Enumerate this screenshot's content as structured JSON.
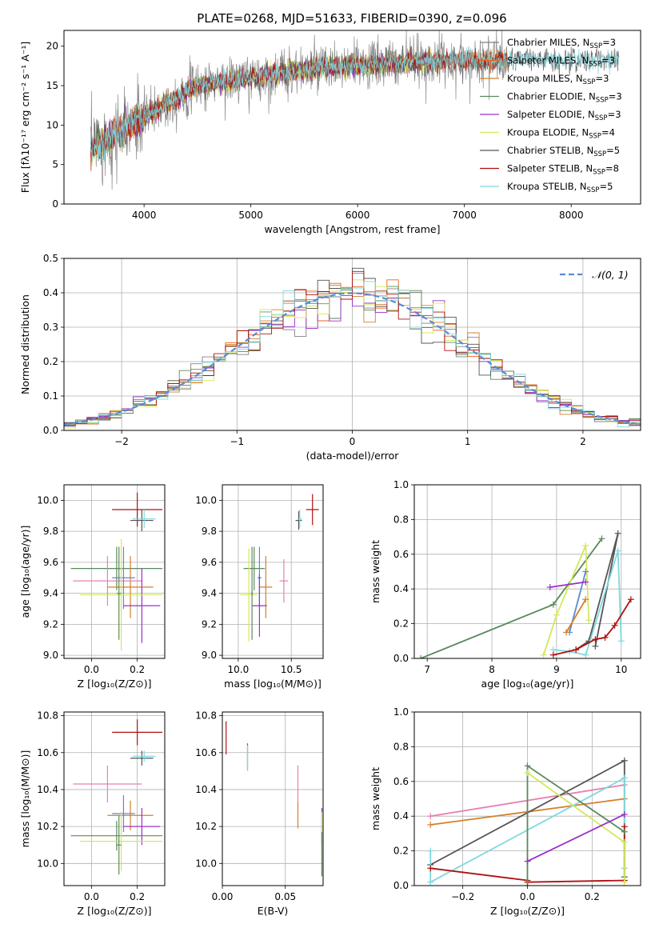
{
  "figure": {
    "suptitle": "PLATE=0268, MJD=51633, FIBERID=0390, z=0.096"
  },
  "colors": {
    "Chabrier MILES": "#808080",
    "Salpeter MILES": "#e8641a",
    "Kroupa MILES": "#d47f2a",
    "Chabrier ELODIE": "#5b8a5b",
    "Salpeter ELODIE": "#9b30c8",
    "Kroupa ELODIE": "#d4e85a",
    "Chabrier STELIB": "#555555",
    "Salpeter STELIB": "#b01010",
    "Kroupa STELIB": "#7fd8e0",
    "Pink": "#e880b0",
    "Blue": "#5a8ad8",
    "Normal": "#5a8ad8"
  },
  "chart_data": [
    {
      "id": "spectrum",
      "type": "line",
      "title": "",
      "xlabel": "wavelength [Angstrom, rest frame]",
      "ylabel": "Flux [fλ10⁻¹⁷ erg cm⁻² s⁻¹ A⁻¹]",
      "xlim": [
        3250,
        8650
      ],
      "ylim": [
        0,
        22
      ],
      "xticks": [
        4000,
        5000,
        6000,
        7000,
        8000
      ],
      "yticks": [
        0,
        5,
        10,
        15,
        20
      ],
      "grid": false,
      "legend_position": "right",
      "series": [
        {
          "name": "Chabrier MILES, N_SSP=3",
          "label_main": "Chabrier MILES, N",
          "label_sub": "SSP",
          "label_tail": "=3",
          "color_key": "Chabrier MILES",
          "x": [
            3500,
            4000,
            4500,
            5000,
            5500,
            6000,
            6500,
            7000,
            7400
          ],
          "y": [
            7,
            11,
            15,
            16,
            17,
            17.5,
            18,
            18.2,
            18.3
          ],
          "noise": 1.6
        },
        {
          "name": "Salpeter MILES, N_SSP=3",
          "label_main": "Salpeter MILES, N",
          "label_sub": "SSP",
          "label_tail": "=3",
          "color_key": "Salpeter MILES",
          "x": [
            3500,
            4000,
            4500,
            5000,
            5500,
            6000,
            6500,
            7000,
            7400
          ],
          "y": [
            7,
            11,
            15,
            16,
            17,
            17.5,
            18,
            18.2,
            18.3
          ],
          "noise": 0.6
        },
        {
          "name": "Kroupa MILES, N_SSP=3",
          "label_main": "Kroupa MILES, N",
          "label_sub": "SSP",
          "label_tail": "=3",
          "color_key": "Kroupa MILES",
          "x": [
            3500,
            4000,
            4500,
            5000,
            5500,
            6000,
            6500,
            7000,
            7400
          ],
          "y": [
            7,
            11,
            15,
            16,
            17,
            17.5,
            18,
            18.2,
            18.3
          ],
          "noise": 0.6
        },
        {
          "name": "Chabrier ELODIE, N_SSP=3",
          "label_main": "Chabrier ELODIE, N",
          "label_sub": "SSP",
          "label_tail": "=3",
          "color_key": "Chabrier ELODIE",
          "x": [
            3500,
            4000,
            4500,
            5000,
            5500,
            6000,
            6500,
            6800
          ],
          "y": [
            7,
            11,
            15,
            16,
            17,
            17.5,
            18,
            18.1
          ],
          "noise": 0.6
        },
        {
          "name": "Salpeter ELODIE, N_SSP=3",
          "label_main": "Salpeter ELODIE, N",
          "label_sub": "SSP",
          "label_tail": "=3",
          "color_key": "Salpeter ELODIE",
          "x": [
            3500,
            4000,
            4500,
            5000,
            5500,
            6000,
            6500,
            6800
          ],
          "y": [
            7,
            11,
            15,
            16,
            17,
            17.5,
            18,
            18.1
          ],
          "noise": 0.6
        },
        {
          "name": "Kroupa ELODIE, N_SSP=4",
          "label_main": "Kroupa ELODIE, N",
          "label_sub": "SSP",
          "label_tail": "=4",
          "color_key": "Kroupa ELODIE",
          "x": [
            3500,
            4000,
            4500,
            5000,
            5500,
            6000,
            6500,
            6800
          ],
          "y": [
            7,
            11,
            15,
            16,
            17,
            17.5,
            18,
            18.1
          ],
          "noise": 0.6
        },
        {
          "name": "Chabrier STELIB, N_SSP=5",
          "label_main": "Chabrier STELIB, N",
          "label_sub": "SSP",
          "label_tail": "=5",
          "color_key": "Chabrier STELIB",
          "x": [
            3500,
            4000,
            4500,
            5000,
            5500,
            6000,
            6500,
            7000,
            7500,
            8000,
            8450
          ],
          "y": [
            7,
            11,
            15,
            16,
            17,
            17.5,
            18,
            18.2,
            18.3,
            18.2,
            18.1
          ],
          "noise": 0.8
        },
        {
          "name": "Salpeter STELIB, N_SSP=8",
          "label_main": "Salpeter STELIB, N",
          "label_sub": "SSP",
          "label_tail": "=8",
          "color_key": "Salpeter STELIB",
          "x": [
            3500,
            4000,
            4500,
            5000,
            5500,
            6000,
            6500,
            7000,
            7400
          ],
          "y": [
            7,
            11,
            15,
            16,
            17,
            17.5,
            18,
            18.2,
            18.3
          ],
          "noise": 0.6
        },
        {
          "name": "Kroupa STELIB, N_SSP=5",
          "label_main": "Kroupa STELIB, N",
          "label_sub": "SSP",
          "label_tail": "=5",
          "color_key": "Kroupa STELIB",
          "x": [
            3500,
            4000,
            4500,
            5000,
            5500,
            6000,
            6500,
            7000,
            7500,
            8000,
            8450
          ],
          "y": [
            7,
            11,
            15,
            16,
            17,
            17.5,
            18,
            18.2,
            18.3,
            18.2,
            18.1
          ],
          "noise": 0.6
        }
      ]
    },
    {
      "id": "residuals",
      "type": "histogram",
      "title": "",
      "xlabel": "(data-model)/error",
      "ylabel": "Normed distribution",
      "xlim": [
        -2.5,
        2.5
      ],
      "ylim": [
        0,
        0.5
      ],
      "xticks": [
        -2,
        -1,
        0,
        1,
        2
      ],
      "yticks": [
        0.0,
        0.1,
        0.2,
        0.3,
        0.4,
        0.5
      ],
      "grid": true,
      "legend_position": "top-right",
      "legend": [
        {
          "name": "𝒩(0, 1)",
          "color_key": "Normal",
          "dashed": true
        }
      ],
      "bin_width": 0.1,
      "series_color_keys": [
        "Chabrier MILES",
        "Salpeter MILES",
        "Kroupa MILES",
        "Chabrier ELODIE",
        "Salpeter ELODIE",
        "Kroupa ELODIE",
        "Chabrier STELIB",
        "Salpeter STELIB",
        "Kroupa STELIB"
      ]
    },
    {
      "id": "age_vs_Z",
      "type": "errorbar",
      "xlabel": "Z [log₁₀(Z/Z⊙)]",
      "ylabel": "age  [log₁₀(age/yr)]",
      "xlim": [
        -0.12,
        0.32
      ],
      "ylim": [
        8.98,
        10.1
      ],
      "xticks": [
        0.0,
        0.2
      ],
      "xtick_labels": [
        "0.0",
        "0.2"
      ],
      "yticks": [
        9.0,
        9.2,
        9.4,
        9.6,
        9.8,
        10.0
      ],
      "grid": true,
      "points": [
        {
          "color_key": "Salpeter STELIB",
          "x": 0.2,
          "xerr": 0.11,
          "y": 9.94,
          "yerr": 0.11
        },
        {
          "color_key": "Chabrier STELIB",
          "x": 0.22,
          "xerr": 0.05,
          "y": 9.87,
          "yerr": 0.07
        },
        {
          "color_key": "Kroupa STELIB",
          "x": 0.23,
          "xerr": 0.05,
          "y": 9.88,
          "yerr": 0.06
        },
        {
          "color_key": "Chabrier ELODIE",
          "x": 0.11,
          "xerr": 0.2,
          "y": 9.56,
          "yerr": 0.14
        },
        {
          "color_key": "Kroupa MILES",
          "x": 0.17,
          "xerr": 0.1,
          "y": 9.44,
          "yerr": 0.2
        },
        {
          "color_key": "Pink",
          "x": 0.07,
          "xerr": 0.15,
          "y": 9.48,
          "yerr": 0.16
        },
        {
          "color_key": "Blue",
          "x": 0.14,
          "xerr": 0.05,
          "y": 9.5,
          "yerr": 0.2
        },
        {
          "color_key": "Salpeter ELODIE",
          "x": 0.22,
          "xerr": 0.08,
          "y": 9.32,
          "yerr": 0.24
        },
        {
          "color_key": "Kroupa ELODIE",
          "x": 0.13,
          "xerr": 0.18,
          "y": 9.39,
          "yerr": 0.36
        },
        {
          "color_key": "Chabrier ELODIE",
          "x": 0.12,
          "xerr": 0.01,
          "y": 9.4,
          "yerr": 0.3
        }
      ]
    },
    {
      "id": "age_vs_mass",
      "type": "errorbar",
      "xlabel": "mass [log₁₀(M/M⊙)]",
      "ylabel": "",
      "xlim": [
        9.85,
        10.8
      ],
      "ylim": [
        8.98,
        10.1
      ],
      "xticks": [
        10.0,
        10.5
      ],
      "xtick_labels": [
        "10.0",
        "10.5"
      ],
      "yticks": [
        9.0,
        9.2,
        9.4,
        9.6,
        9.8,
        10.0
      ],
      "grid": true,
      "points": [
        {
          "color_key": "Salpeter STELIB",
          "x": 10.7,
          "xerr": 0.06,
          "y": 9.94,
          "yerr": 0.1
        },
        {
          "color_key": "Chabrier STELIB",
          "x": 10.57,
          "xerr": 0.03,
          "y": 9.87,
          "yerr": 0.06
        },
        {
          "color_key": "Kroupa STELIB",
          "x": 10.58,
          "xerr": 0.02,
          "y": 9.88,
          "yerr": 0.06
        },
        {
          "color_key": "Chabrier ELODIE",
          "x": 10.15,
          "xerr": 0.1,
          "y": 9.56,
          "yerr": 0.14
        },
        {
          "color_key": "Kroupa MILES",
          "x": 10.26,
          "xerr": 0.06,
          "y": 9.44,
          "yerr": 0.2
        },
        {
          "color_key": "Pink",
          "x": 10.43,
          "xerr": 0.04,
          "y": 9.48,
          "yerr": 0.14
        },
        {
          "color_key": "Blue",
          "x": 10.2,
          "xerr": 0.02,
          "y": 9.5,
          "yerr": 0.2
        },
        {
          "color_key": "Salpeter ELODIE",
          "x": 10.2,
          "xerr": 0.07,
          "y": 9.32,
          "yerr": 0.2
        },
        {
          "color_key": "Kroupa ELODIE",
          "x": 10.1,
          "xerr": 0.08,
          "y": 9.39,
          "yerr": 0.3
        },
        {
          "color_key": "Chabrier ELODIE",
          "x": 10.13,
          "xerr": 0.01,
          "y": 9.4,
          "yerr": 0.3
        }
      ]
    },
    {
      "id": "weight_vs_age",
      "type": "line",
      "xlabel": "age  [log₁₀(age/yr)]",
      "ylabel": "mass weight",
      "xlim": [
        6.8,
        10.3
      ],
      "ylim": [
        0,
        1
      ],
      "xticks": [
        7,
        8,
        9,
        10
      ],
      "yticks": [
        0.0,
        0.2,
        0.4,
        0.6,
        0.8,
        1.0
      ],
      "grid": true,
      "series": [
        {
          "color_key": "Chabrier ELODIE",
          "x": [
            6.9,
            8.95,
            9.7
          ],
          "y": [
            0.0,
            0.31,
            0.69
          ]
        },
        {
          "color_key": "Kroupa ELODIE",
          "x": [
            8.8,
            9.0,
            9.45,
            9.5
          ],
          "y": [
            0.02,
            0.25,
            0.65,
            0.22
          ]
        },
        {
          "color_key": "Chabrier STELIB",
          "x": [
            9.3,
            9.5,
            9.95,
            9.6
          ],
          "y": [
            0.05,
            0.1,
            0.72,
            0.07
          ]
        },
        {
          "color_key": "Kroupa STELIB",
          "x": [
            8.95,
            9.2,
            9.45,
            9.95,
            10.0
          ],
          "y": [
            0.05,
            0.04,
            0.02,
            0.62,
            0.1
          ]
        },
        {
          "color_key": "Salpeter STELIB",
          "x": [
            8.95,
            9.3,
            9.6,
            9.75,
            9.9,
            10.15
          ],
          "y": [
            0.02,
            0.05,
            0.11,
            0.12,
            0.19,
            0.34
          ]
        },
        {
          "color_key": "Blue",
          "x": [
            9.2,
            9.45
          ],
          "y": [
            0.15,
            0.5
          ]
        },
        {
          "color_key": "Salpeter ELODIE",
          "x": [
            8.9,
            9.45
          ],
          "y": [
            0.41,
            0.44
          ]
        },
        {
          "color_key": "Kroupa MILES",
          "x": [
            9.15,
            9.45
          ],
          "y": [
            0.15,
            0.34
          ]
        }
      ]
    },
    {
      "id": "mass_vs_Z",
      "type": "errorbar",
      "xlabel": "Z [log₁₀(Z/Z⊙)]",
      "ylabel": "mass [log₁₀(M/M⊙)]",
      "xlim": [
        -0.12,
        0.32
      ],
      "ylim": [
        9.88,
        10.82
      ],
      "xticks": [
        0.0,
        0.2
      ],
      "xtick_labels": [
        "0.0",
        "0.2"
      ],
      "yticks": [
        10.0,
        10.2,
        10.4,
        10.6,
        10.8
      ],
      "grid": true,
      "points": [
        {
          "color_key": "Salpeter STELIB",
          "x": 0.2,
          "xerr": 0.11,
          "y": 10.71,
          "yerr": 0.07
        },
        {
          "color_key": "Chabrier STELIB",
          "x": 0.22,
          "xerr": 0.05,
          "y": 10.57,
          "yerr": 0.04
        },
        {
          "color_key": "Kroupa STELIB",
          "x": 0.23,
          "xerr": 0.05,
          "y": 10.58,
          "yerr": 0.03
        },
        {
          "color_key": "Pink",
          "x": 0.07,
          "xerr": 0.15,
          "y": 10.43,
          "yerr": 0.1
        },
        {
          "color_key": "Kroupa MILES",
          "x": 0.17,
          "xerr": 0.1,
          "y": 10.26,
          "yerr": 0.08
        },
        {
          "color_key": "Blue",
          "x": 0.14,
          "xerr": 0.05,
          "y": 10.27,
          "yerr": 0.1
        },
        {
          "color_key": "Salpeter ELODIE",
          "x": 0.22,
          "xerr": 0.08,
          "y": 10.2,
          "yerr": 0.1
        },
        {
          "color_key": "Chabrier ELODIE",
          "x": 0.11,
          "xerr": 0.2,
          "y": 10.15,
          "yerr": 0.08
        },
        {
          "color_key": "Kroupa ELODIE",
          "x": 0.13,
          "xerr": 0.18,
          "y": 10.12,
          "yerr": 0.16
        },
        {
          "color_key": "Chabrier ELODIE",
          "x": 0.12,
          "xerr": 0.01,
          "y": 10.1,
          "yerr": 0.16
        }
      ]
    },
    {
      "id": "mass_vs_ebv",
      "type": "errorbar",
      "xlabel": "E(B-V)",
      "ylabel": "",
      "xlim": [
        0.0,
        0.08
      ],
      "ylim": [
        9.88,
        10.82
      ],
      "xticks": [
        0.0,
        0.05
      ],
      "xtick_labels": [
        "0.00",
        "0.05"
      ],
      "yticks": [
        10.0,
        10.2,
        10.4,
        10.6,
        10.8
      ],
      "grid": true,
      "points": [
        {
          "color_key": "Salpeter STELIB",
          "x": 0.003,
          "xerr": 0.0,
          "y": 10.68,
          "yerr": 0.09
        },
        {
          "color_key": "Chabrier STELIB",
          "x": 0.02,
          "xerr": 0.0,
          "y": 10.58,
          "yerr": 0.07
        },
        {
          "color_key": "Kroupa STELIB",
          "x": 0.02,
          "xerr": 0.0,
          "y": 10.57,
          "yerr": 0.07
        },
        {
          "color_key": "Pink",
          "x": 0.06,
          "xerr": 0.0,
          "y": 10.43,
          "yerr": 0.1
        },
        {
          "color_key": "Kroupa MILES",
          "x": 0.06,
          "xerr": 0.0,
          "y": 10.26,
          "yerr": 0.07
        },
        {
          "color_key": "Salpeter ELODIE",
          "x": 0.079,
          "xerr": 0.0,
          "y": 10.2,
          "yerr": 0.1
        },
        {
          "color_key": "Kroupa ELODIE",
          "x": 0.079,
          "xerr": 0.0,
          "y": 10.12,
          "yerr": 0.16
        },
        {
          "color_key": "Chabrier ELODIE",
          "x": 0.079,
          "xerr": 0.0,
          "y": 10.05,
          "yerr": 0.12
        }
      ]
    },
    {
      "id": "weight_vs_Z",
      "type": "line",
      "xlabel": "Z [log₁₀(Z/Z⊙)]",
      "ylabel": "mass weight",
      "xlim": [
        -0.35,
        0.35
      ],
      "ylim": [
        0,
        1
      ],
      "xticks": [
        -0.2,
        0.0,
        0.2
      ],
      "xtick_labels": [
        "−0.2",
        "0.0",
        "0.2"
      ],
      "yticks": [
        0.0,
        0.2,
        0.4,
        0.6,
        0.8,
        1.0
      ],
      "grid": true,
      "series": [
        {
          "color_key": "Pink",
          "x": [
            -0.3,
            0.3
          ],
          "y": [
            0.4,
            0.58
          ]
        },
        {
          "color_key": "Kroupa MILES",
          "x": [
            -0.3,
            0.3
          ],
          "y": [
            0.35,
            0.5
          ]
        },
        {
          "color_key": "Chabrier STELIB",
          "x": [
            -0.3,
            0.3,
            0.3
          ],
          "y": [
            0.12,
            0.72,
            0.05
          ]
        },
        {
          "color_key": "Kroupa STELIB",
          "x": [
            -0.3,
            -0.3,
            0.3,
            0.3
          ],
          "y": [
            0.2,
            0.02,
            0.62,
            0.1
          ]
        },
        {
          "color_key": "Salpeter STELIB",
          "x": [
            -0.3,
            0.0,
            0.0,
            0.3,
            0.3
          ],
          "y": [
            0.1,
            0.03,
            0.02,
            0.03,
            0.34
          ]
        },
        {
          "color_key": "Chabrier ELODIE",
          "x": [
            0.0,
            0.0,
            0.3
          ],
          "y": [
            0.0,
            0.69,
            0.31
          ]
        },
        {
          "color_key": "Kroupa ELODIE",
          "x": [
            0.0,
            0.3,
            0.3
          ],
          "y": [
            0.65,
            0.25,
            0.02
          ]
        },
        {
          "color_key": "Salpeter ELODIE",
          "x": [
            0.0,
            0.3
          ],
          "y": [
            0.14,
            0.41
          ]
        }
      ]
    }
  ]
}
